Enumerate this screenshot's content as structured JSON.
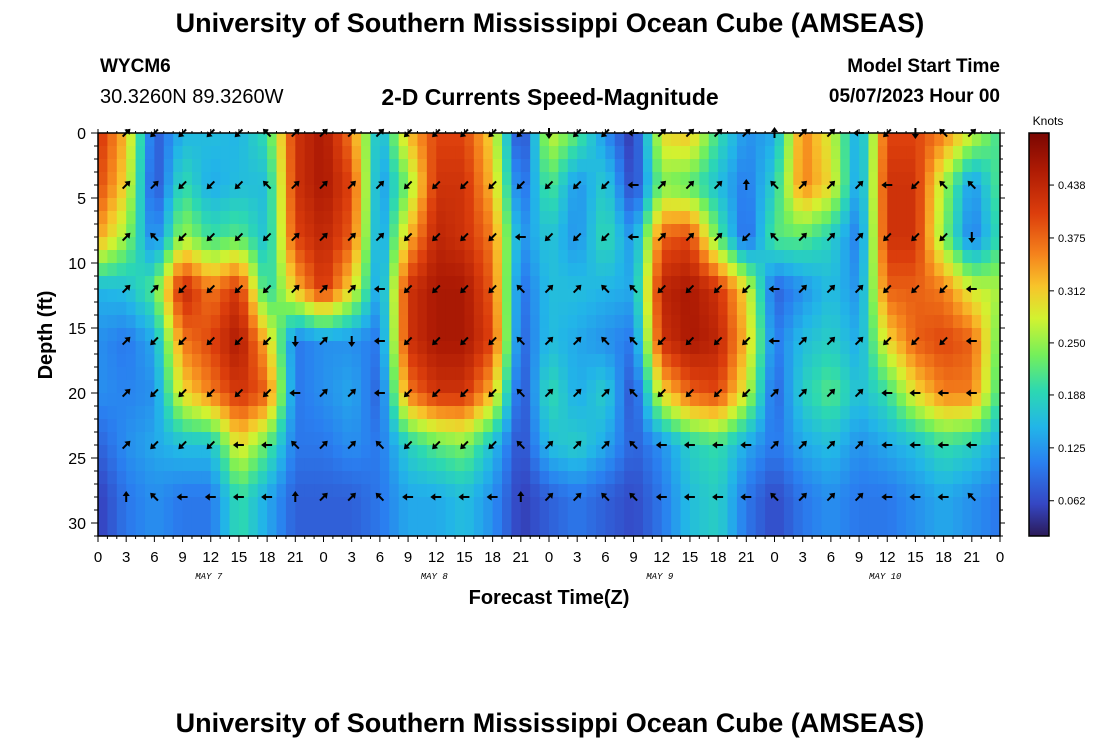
{
  "header": {
    "title": "University of Southern Mississippi Ocean Cube (AMSEAS)",
    "station": "WYCM6",
    "coordinates": "30.3260N  89.3260W",
    "subtitle": "2-D Currents Speed-Magnitude",
    "model_start_label": "Model Start Time",
    "model_start_value": "05/07/2023 Hour 00"
  },
  "footer": {
    "title": "University of Southern Mississippi Ocean Cube (AMSEAS)"
  },
  "chart_data": {
    "type": "heatmap",
    "title": "2-D Currents Speed-Magnitude",
    "xlabel": "Forecast Time(Z)",
    "ylabel": "Depth (ft)",
    "x_range_hours": [
      0,
      96
    ],
    "x_tick_hours": [
      0,
      3,
      6,
      9,
      12,
      15,
      18,
      21,
      24,
      27,
      30,
      33,
      36,
      39,
      42,
      45,
      48,
      51,
      54,
      57,
      60,
      63,
      66,
      69,
      72,
      75,
      78,
      81,
      84,
      87,
      90,
      93,
      96
    ],
    "x_tick_labels": [
      "0",
      "3",
      "6",
      "9",
      "12",
      "15",
      "18",
      "21",
      "0",
      "3",
      "6",
      "9",
      "12",
      "15",
      "18",
      "21",
      "0",
      "3",
      "6",
      "9",
      "12",
      "15",
      "18",
      "21",
      "0",
      "3",
      "6",
      "9",
      "12",
      "15",
      "18",
      "21",
      "0"
    ],
    "day_labels": [
      {
        "label": "MAY 7",
        "hour": 12
      },
      {
        "label": "MAY 8",
        "hour": 36
      },
      {
        "label": "MAY 9",
        "hour": 60
      },
      {
        "label": "MAY 10",
        "hour": 84
      }
    ],
    "y_range": [
      0,
      31
    ],
    "y_ticks": [
      0,
      5,
      10,
      15,
      20,
      25,
      30
    ],
    "y_inverted": true,
    "colorbar": {
      "unit": "Knots",
      "range": [
        0.02,
        0.5
      ],
      "ticks": [
        0.062,
        0.125,
        0.188,
        0.25,
        0.312,
        0.375,
        0.438
      ],
      "tick_labels": [
        "0.062",
        "0.125",
        "0.188",
        "0.250",
        "0.312",
        "0.375",
        "0.438"
      ]
    },
    "speed_grid": {
      "x_hours": [
        0,
        3,
        6,
        9,
        12,
        15,
        18,
        21,
        24,
        27,
        30,
        33,
        36,
        39,
        42,
        45,
        48,
        51,
        54,
        57,
        60,
        63,
        66,
        69,
        72,
        75,
        78,
        81,
        84,
        87,
        90,
        93,
        96
      ],
      "depths_ft": [
        0,
        4,
        8,
        12,
        16,
        20,
        24,
        28,
        31
      ],
      "values": [
        [
          0.42,
          0.32,
          0.07,
          0.15,
          0.16,
          0.15,
          0.2,
          0.42,
          0.46,
          0.36,
          0.14,
          0.32,
          0.4,
          0.4,
          0.3,
          0.04,
          0.28,
          0.22,
          0.12,
          0.04,
          0.3,
          0.32,
          0.2,
          0.12,
          0.14,
          0.36,
          0.28,
          0.13,
          0.4,
          0.4,
          0.36,
          0.28,
          0.2
        ],
        [
          0.4,
          0.3,
          0.06,
          0.2,
          0.14,
          0.16,
          0.16,
          0.42,
          0.46,
          0.4,
          0.12,
          0.24,
          0.42,
          0.42,
          0.32,
          0.08,
          0.22,
          0.12,
          0.18,
          0.05,
          0.24,
          0.22,
          0.16,
          0.1,
          0.18,
          0.36,
          0.3,
          0.12,
          0.42,
          0.42,
          0.26,
          0.12,
          0.22
        ],
        [
          0.34,
          0.25,
          0.1,
          0.26,
          0.2,
          0.22,
          0.16,
          0.4,
          0.44,
          0.38,
          0.12,
          0.32,
          0.44,
          0.42,
          0.36,
          0.12,
          0.17,
          0.12,
          0.2,
          0.12,
          0.38,
          0.4,
          0.22,
          0.08,
          0.22,
          0.22,
          0.18,
          0.1,
          0.42,
          0.42,
          0.24,
          0.1,
          0.2
        ],
        [
          0.15,
          0.16,
          0.22,
          0.44,
          0.36,
          0.42,
          0.18,
          0.32,
          0.42,
          0.3,
          0.12,
          0.42,
          0.46,
          0.46,
          0.38,
          0.09,
          0.16,
          0.16,
          0.15,
          0.14,
          0.44,
          0.46,
          0.42,
          0.3,
          0.08,
          0.12,
          0.16,
          0.12,
          0.38,
          0.38,
          0.36,
          0.28,
          0.26
        ],
        [
          0.12,
          0.1,
          0.14,
          0.36,
          0.4,
          0.46,
          0.32,
          0.1,
          0.12,
          0.12,
          0.1,
          0.42,
          0.46,
          0.46,
          0.4,
          0.08,
          0.16,
          0.14,
          0.12,
          0.1,
          0.42,
          0.46,
          0.44,
          0.32,
          0.1,
          0.16,
          0.18,
          0.14,
          0.3,
          0.38,
          0.4,
          0.38,
          0.22
        ],
        [
          0.12,
          0.11,
          0.12,
          0.3,
          0.36,
          0.42,
          0.38,
          0.1,
          0.12,
          0.14,
          0.08,
          0.36,
          0.42,
          0.42,
          0.32,
          0.06,
          0.2,
          0.14,
          0.18,
          0.06,
          0.3,
          0.38,
          0.4,
          0.28,
          0.08,
          0.18,
          0.22,
          0.16,
          0.2,
          0.3,
          0.36,
          0.36,
          0.2
        ],
        [
          0.08,
          0.12,
          0.14,
          0.16,
          0.16,
          0.3,
          0.22,
          0.1,
          0.1,
          0.12,
          0.1,
          0.18,
          0.22,
          0.24,
          0.16,
          0.06,
          0.16,
          0.18,
          0.14,
          0.08,
          0.12,
          0.18,
          0.2,
          0.14,
          0.1,
          0.14,
          0.16,
          0.12,
          0.14,
          0.16,
          0.2,
          0.18,
          0.14
        ],
        [
          0.05,
          0.1,
          0.12,
          0.1,
          0.1,
          0.2,
          0.14,
          0.08,
          0.08,
          0.08,
          0.1,
          0.14,
          0.14,
          0.16,
          0.12,
          0.05,
          0.08,
          0.1,
          0.08,
          0.06,
          0.1,
          0.16,
          0.18,
          0.1,
          0.06,
          0.1,
          0.12,
          0.1,
          0.1,
          0.12,
          0.14,
          0.12,
          0.1
        ],
        [
          0.05,
          0.1,
          0.12,
          0.1,
          0.1,
          0.2,
          0.14,
          0.08,
          0.08,
          0.08,
          0.1,
          0.14,
          0.14,
          0.16,
          0.12,
          0.05,
          0.08,
          0.1,
          0.08,
          0.06,
          0.1,
          0.16,
          0.18,
          0.1,
          0.06,
          0.1,
          0.12,
          0.1,
          0.1,
          0.12,
          0.14,
          0.12,
          0.1
        ]
      ]
    },
    "vectors": {
      "x_hours": [
        0,
        3,
        6,
        9,
        12,
        15,
        18,
        21,
        24,
        27,
        30,
        33,
        36,
        39,
        42,
        45,
        48,
        51,
        54,
        57,
        60,
        63,
        66,
        69,
        72,
        75,
        78,
        81,
        84,
        87,
        90,
        93,
        96
      ],
      "depths_ft": [
        0,
        4,
        8,
        12,
        16,
        20,
        24,
        28
      ],
      "direction_deg": [
        [
          225,
          45,
          225,
          225,
          225,
          225,
          135,
          45,
          45,
          45,
          45,
          225,
          225,
          225,
          225,
          225,
          270,
          225,
          225,
          180,
          45,
          45,
          45,
          45,
          90,
          45,
          45,
          180,
          225,
          270,
          135,
          45,
          45
        ],
        [
          45,
          45,
          45,
          225,
          225,
          225,
          135,
          45,
          45,
          45,
          45,
          225,
          225,
          225,
          225,
          225,
          225,
          225,
          225,
          180,
          45,
          45,
          45,
          90,
          135,
          45,
          45,
          45,
          180,
          225,
          135,
          135,
          45
        ],
        [
          45,
          45,
          135,
          225,
          225,
          225,
          225,
          45,
          45,
          45,
          45,
          225,
          225,
          225,
          225,
          180,
          225,
          225,
          225,
          180,
          45,
          45,
          45,
          225,
          135,
          45,
          45,
          45,
          225,
          225,
          225,
          270,
          45
        ],
        [
          45,
          45,
          45,
          225,
          225,
          225,
          225,
          45,
          45,
          45,
          180,
          225,
          225,
          225,
          225,
          135,
          45,
          45,
          135,
          135,
          225,
          225,
          225,
          225,
          180,
          45,
          45,
          45,
          225,
          225,
          225,
          180,
          45
        ],
        [
          45,
          45,
          225,
          225,
          225,
          225,
          225,
          270,
          45,
          270,
          180,
          225,
          225,
          225,
          225,
          135,
          45,
          45,
          135,
          135,
          225,
          225,
          225,
          225,
          180,
          45,
          45,
          45,
          225,
          225,
          225,
          180,
          180
        ],
        [
          45,
          45,
          225,
          225,
          225,
          225,
          225,
          180,
          45,
          45,
          180,
          225,
          225,
          225,
          225,
          135,
          45,
          45,
          45,
          135,
          225,
          225,
          225,
          225,
          45,
          45,
          45,
          45,
          180,
          180,
          180,
          180,
          180
        ],
        [
          45,
          45,
          225,
          225,
          225,
          180,
          180,
          135,
          45,
          45,
          135,
          225,
          225,
          225,
          225,
          135,
          45,
          45,
          45,
          135,
          180,
          180,
          180,
          180,
          45,
          45,
          45,
          45,
          180,
          180,
          180,
          180,
          180
        ],
        [
          45,
          90,
          135,
          180,
          180,
          180,
          180,
          90,
          45,
          45,
          135,
          180,
          180,
          180,
          180,
          90,
          45,
          45,
          135,
          135,
          180,
          180,
          180,
          180,
          135,
          45,
          45,
          45,
          180,
          180,
          180,
          135,
          90
        ]
      ]
    }
  }
}
